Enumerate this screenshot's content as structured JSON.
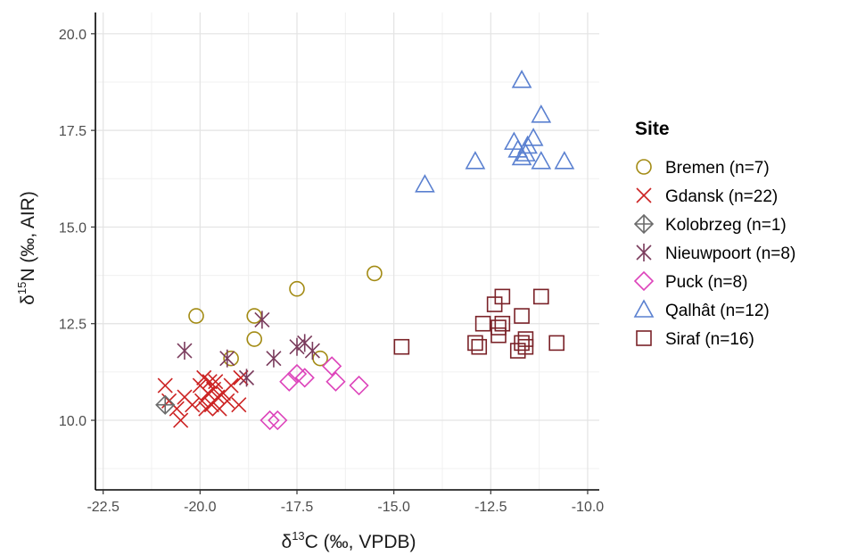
{
  "chart_data": {
    "type": "scatter",
    "title": "",
    "xlabel": {
      "prefix": "δ",
      "sup": "13",
      "suffix": "C (‰, VPDB)"
    },
    "ylabel": {
      "prefix": "δ",
      "sup": "15",
      "suffix": "N (‰, AIR)"
    },
    "xlim": [
      -22.7,
      -9.7
    ],
    "ylim": [
      8.2,
      20.55
    ],
    "x_ticks": [
      -22.5,
      -20.0,
      -17.5,
      -15.0,
      -12.5,
      -10.0
    ],
    "x_tick_labels": [
      "-22.5",
      "-20.0",
      "-17.5",
      "-15.0",
      "-12.5",
      "-10.0"
    ],
    "y_ticks": [
      10.0,
      12.5,
      15.0,
      17.5,
      20.0
    ],
    "y_tick_labels": [
      "10.0",
      "12.5",
      "15.0",
      "17.5",
      "20.0"
    ],
    "grid": true,
    "legend_title": "Site",
    "legend_position": "right",
    "series": [
      {
        "name": "Bremen (n=7)",
        "shape": "circle",
        "color": "#a38b14",
        "points": [
          [
            -20.1,
            12.7
          ],
          [
            -18.6,
            12.7
          ],
          [
            -18.6,
            12.1
          ],
          [
            -17.5,
            13.4
          ],
          [
            -15.5,
            13.8
          ],
          [
            -19.2,
            11.6
          ],
          [
            -16.9,
            11.6
          ]
        ]
      },
      {
        "name": "Gdansk (n=22)",
        "shape": "x",
        "color": "#cc2222",
        "points": [
          [
            -20.9,
            10.9
          ],
          [
            -20.8,
            10.5
          ],
          [
            -20.6,
            10.3
          ],
          [
            -20.5,
            10.0
          ],
          [
            -20.4,
            10.6
          ],
          [
            -20.2,
            10.4
          ],
          [
            -20.0,
            10.9
          ],
          [
            -19.95,
            10.5
          ],
          [
            -19.9,
            11.1
          ],
          [
            -19.85,
            10.3
          ],
          [
            -19.8,
            10.7
          ],
          [
            -19.75,
            11.0
          ],
          [
            -19.7,
            10.4
          ],
          [
            -19.65,
            10.8
          ],
          [
            -19.6,
            11.0
          ],
          [
            -19.55,
            10.6
          ],
          [
            -19.5,
            10.3
          ],
          [
            -19.4,
            10.7
          ],
          [
            -19.3,
            10.5
          ],
          [
            -19.2,
            10.9
          ],
          [
            -19.0,
            10.4
          ],
          [
            -18.95,
            11.1
          ]
        ]
      },
      {
        "name": "Kolobrzeg (n=1)",
        "shape": "diamond-plus",
        "color": "#6b6b6b",
        "points": [
          [
            -20.9,
            10.4
          ]
        ]
      },
      {
        "name": "Nieuwpoort (n=8)",
        "shape": "asterisk",
        "color": "#7a3b5c",
        "points": [
          [
            -20.4,
            11.8
          ],
          [
            -19.3,
            11.6
          ],
          [
            -18.8,
            11.1
          ],
          [
            -18.4,
            12.6
          ],
          [
            -18.1,
            11.6
          ],
          [
            -17.5,
            11.9
          ],
          [
            -17.3,
            12.0
          ],
          [
            -17.1,
            11.8
          ]
        ]
      },
      {
        "name": "Puck (n=8)",
        "shape": "diamond",
        "color": "#dd44bb",
        "points": [
          [
            -18.2,
            10.0
          ],
          [
            -18.0,
            10.0
          ],
          [
            -17.7,
            11.0
          ],
          [
            -17.5,
            11.2
          ],
          [
            -17.3,
            11.1
          ],
          [
            -16.6,
            11.4
          ],
          [
            -16.5,
            11.0
          ],
          [
            -15.9,
            10.9
          ]
        ]
      },
      {
        "name": "Qalhât (n=12)",
        "shape": "triangle",
        "color": "#5a80d0",
        "points": [
          [
            -14.2,
            16.1
          ],
          [
            -12.9,
            16.7
          ],
          [
            -11.9,
            17.2
          ],
          [
            -11.8,
            17.0
          ],
          [
            -11.7,
            18.8
          ],
          [
            -11.7,
            16.8
          ],
          [
            -11.6,
            16.9
          ],
          [
            -11.55,
            17.1
          ],
          [
            -11.4,
            17.3
          ],
          [
            -11.2,
            17.9
          ],
          [
            -11.2,
            16.7
          ],
          [
            -10.6,
            16.7
          ]
        ]
      },
      {
        "name": "Siraf (n=16)",
        "shape": "square",
        "color": "#7a2228",
        "points": [
          [
            -14.8,
            11.9
          ],
          [
            -12.9,
            12.0
          ],
          [
            -12.8,
            11.9
          ],
          [
            -12.7,
            12.5
          ],
          [
            -12.4,
            13.0
          ],
          [
            -12.3,
            12.2
          ],
          [
            -12.2,
            13.2
          ],
          [
            -12.2,
            12.5
          ],
          [
            -11.8,
            11.8
          ],
          [
            -11.7,
            12.7
          ],
          [
            -11.6,
            12.1
          ],
          [
            -11.6,
            11.9
          ],
          [
            -11.2,
            13.2
          ],
          [
            -10.8,
            12.0
          ],
          [
            -12.3,
            12.4
          ],
          [
            -11.7,
            12.0
          ]
        ]
      }
    ]
  }
}
